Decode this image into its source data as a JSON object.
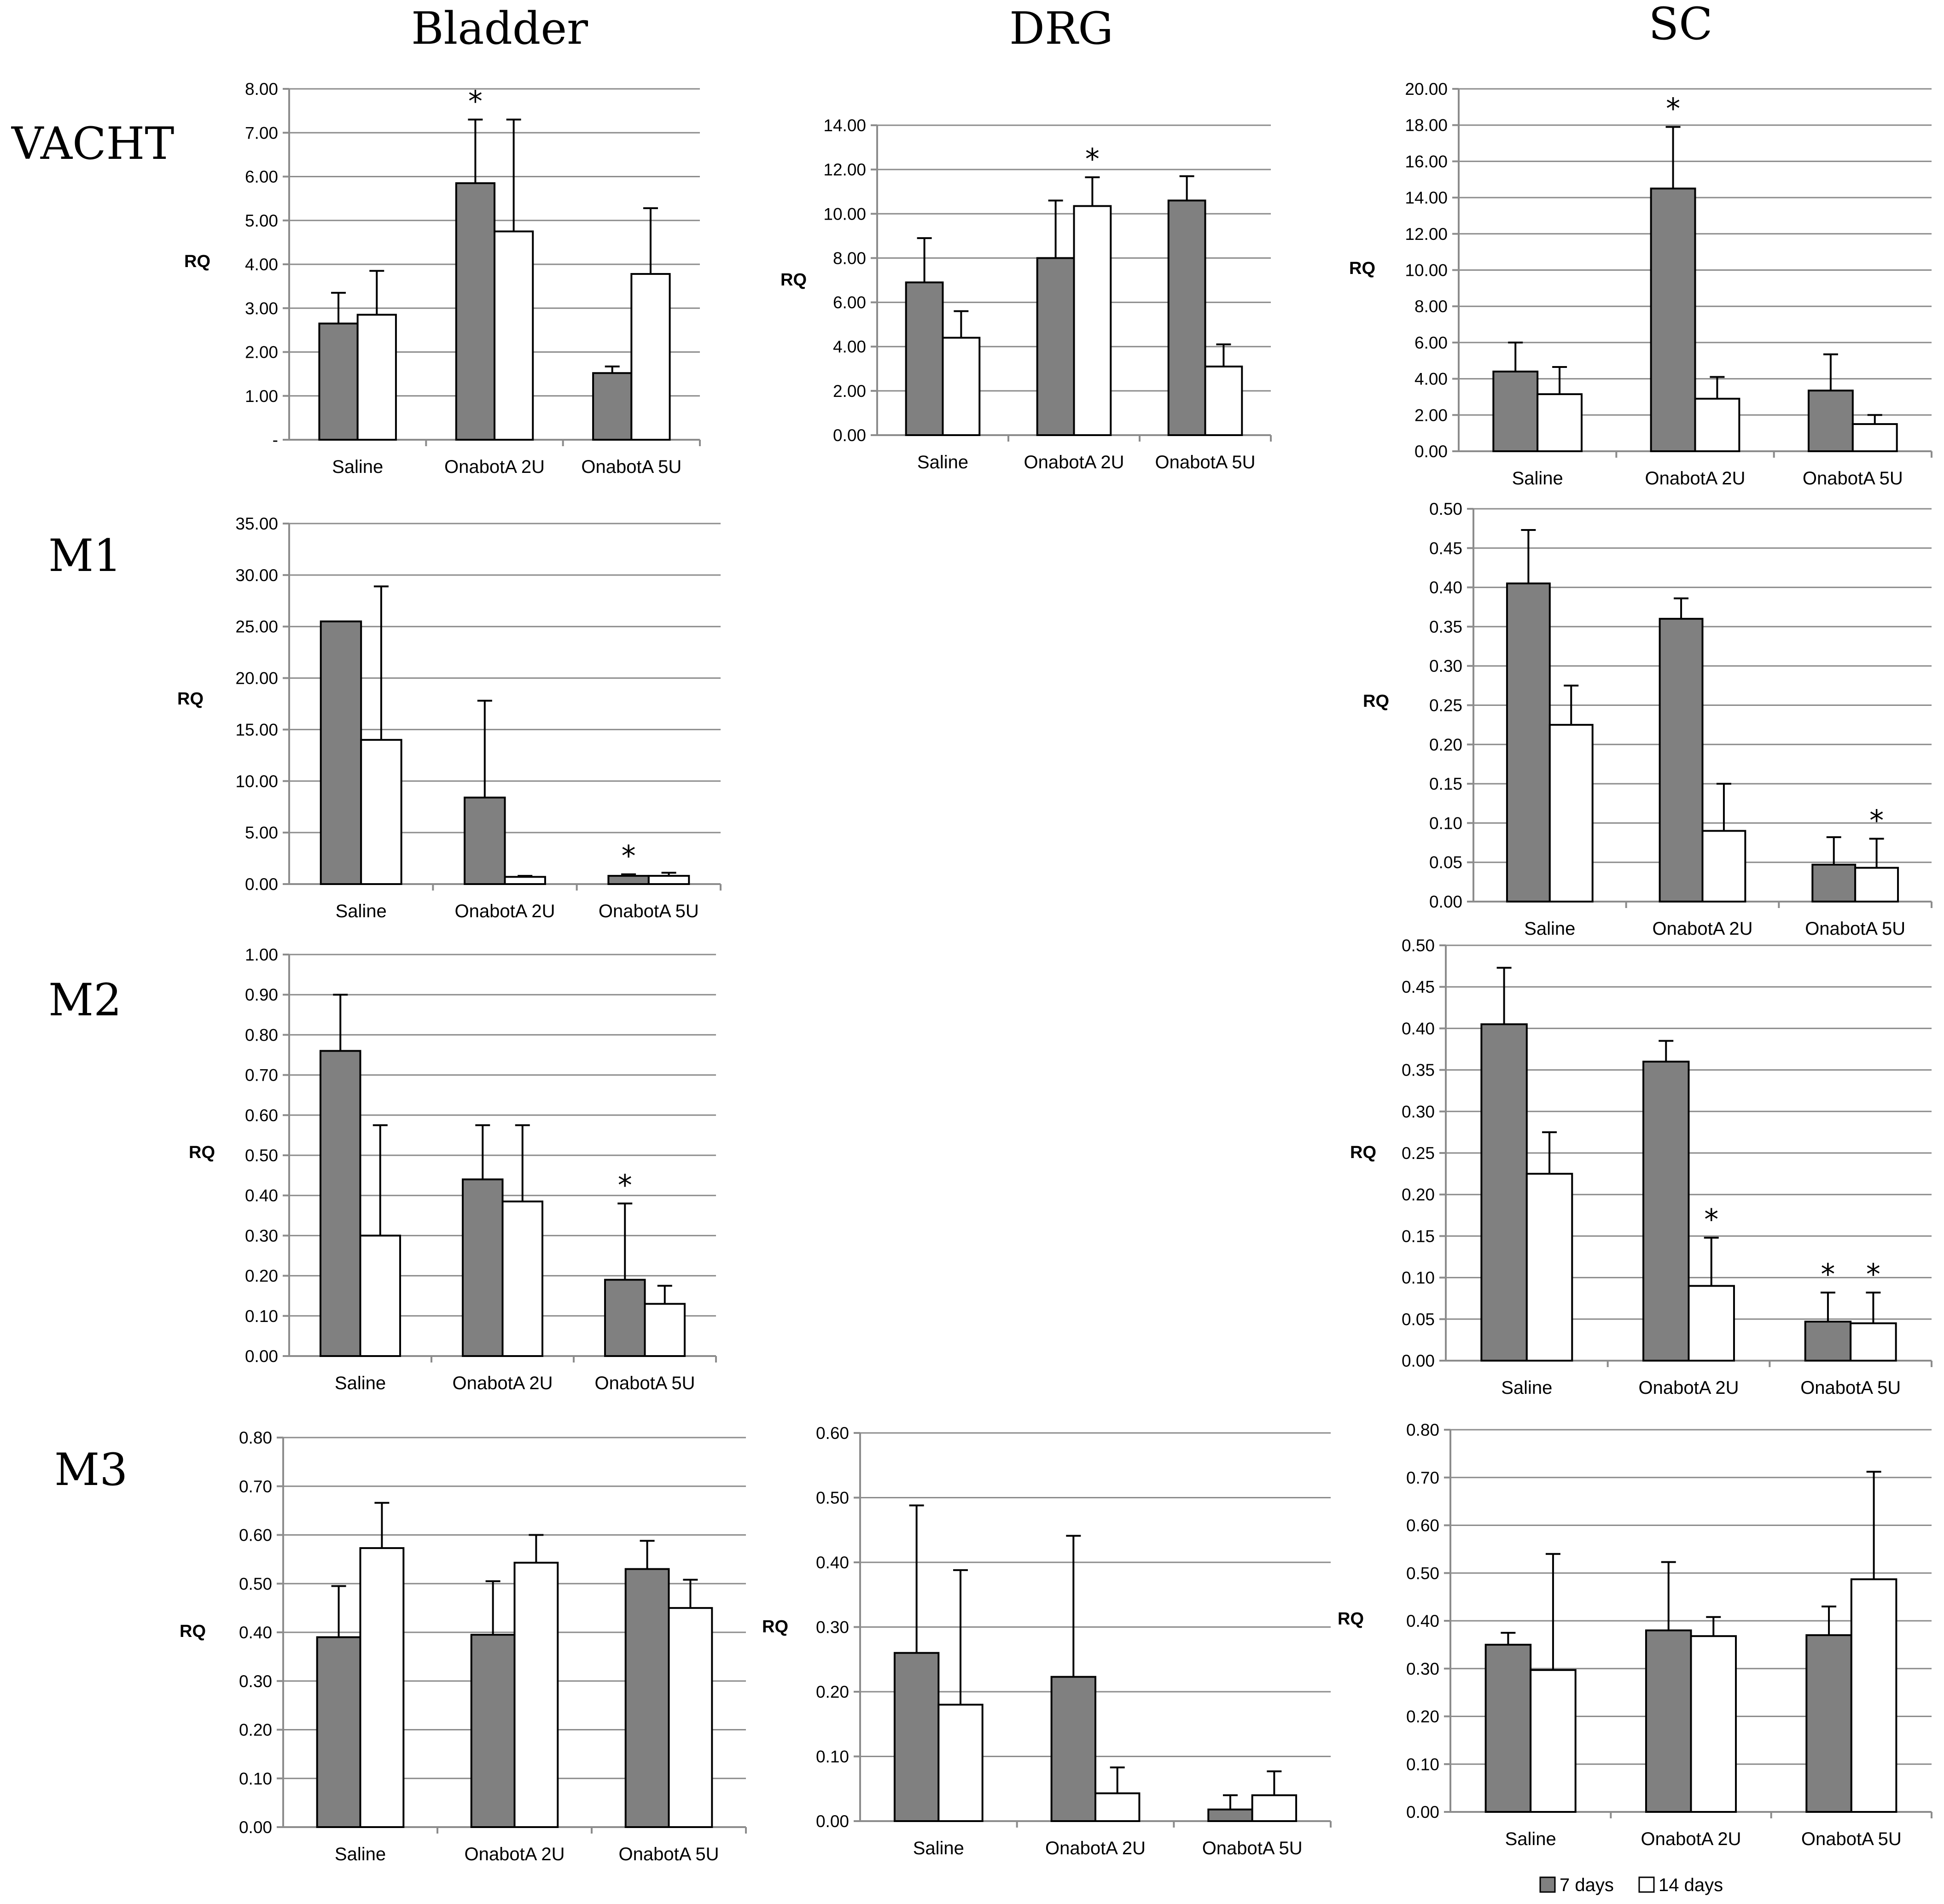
{
  "columns": [
    "Bladder",
    "DRG",
    "SC"
  ],
  "rows": [
    "VACHT",
    "M1",
    "M2",
    "M3"
  ],
  "legend": {
    "items": [
      {
        "label": "7 days",
        "color": "#808080"
      },
      {
        "label": "14 days",
        "color": "#ffffff"
      }
    ]
  },
  "colors": {
    "series_7": "#808080",
    "series_14": "#ffffff",
    "grid": "#8c8c8c"
  },
  "chart_data": [
    {
      "id": "vacht-bladder",
      "type": "bar",
      "categories": [
        "Saline",
        "OnabotA 2U",
        "OnabotA 5U"
      ],
      "ylabel": "RQ",
      "ylim": [
        0,
        8
      ],
      "ticks": [
        "-",
        "1.00",
        "2.00",
        "3.00",
        "4.00",
        "5.00",
        "6.00",
        "7.00",
        "8.00"
      ],
      "series": [
        {
          "name": "7 days",
          "values": [
            2.65,
            5.85,
            1.52
          ],
          "err": [
            0.7,
            1.45,
            0.15
          ]
        },
        {
          "name": "14 days",
          "values": [
            2.85,
            4.75,
            3.78
          ],
          "err": [
            1.0,
            2.55,
            1.5
          ]
        }
      ],
      "stars": [
        [],
        [
          "*"
        ],
        []
      ]
    },
    {
      "id": "vacht-drg",
      "type": "bar",
      "categories": [
        "Saline",
        "OnabotA 2U",
        "OnabotA 5U"
      ],
      "ylabel": "RQ",
      "ylim": [
        0,
        14
      ],
      "ticks": [
        "0.00",
        "2.00",
        "4.00",
        "6.00",
        "8.00",
        "10.00",
        "12.00",
        "14.00"
      ],
      "series": [
        {
          "name": "7 days",
          "values": [
            6.9,
            8.0,
            10.6
          ],
          "err": [
            2.0,
            2.6,
            1.1
          ]
        },
        {
          "name": "14 days",
          "values": [
            4.4,
            10.35,
            3.1
          ],
          "err": [
            1.2,
            1.3,
            1.0
          ]
        }
      ],
      "stars": [
        [],
        [
          "",
          "*"
        ],
        []
      ]
    },
    {
      "id": "vacht-sc",
      "type": "bar",
      "categories": [
        "Saline",
        "OnabotA 2U",
        "OnabotA 5U"
      ],
      "ylabel": "RQ",
      "ylim": [
        0,
        20
      ],
      "ticks": [
        "0.00",
        "2.00",
        "4.00",
        "6.00",
        "8.00",
        "10.00",
        "12.00",
        "14.00",
        "16.00",
        "18.00",
        "20.00"
      ],
      "series": [
        {
          "name": "7 days",
          "values": [
            4.4,
            14.5,
            3.35
          ],
          "err": [
            1.6,
            3.4,
            2.0
          ]
        },
        {
          "name": "14 days",
          "values": [
            3.15,
            2.9,
            1.5
          ],
          "err": [
            1.5,
            1.2,
            0.5
          ]
        }
      ],
      "stars": [
        [],
        [
          "*"
        ],
        []
      ]
    },
    {
      "id": "m1-bladder",
      "type": "bar",
      "categories": [
        "Saline",
        "OnabotA 2U",
        "OnabotA 5U"
      ],
      "ylabel": "RQ",
      "ylim": [
        0,
        35
      ],
      "ticks": [
        "0.00",
        "5.00",
        "10.00",
        "15.00",
        "20.00",
        "25.00",
        "30.00",
        "35.00"
      ],
      "series": [
        {
          "name": "7 days",
          "values": [
            25.5,
            8.4,
            0.8
          ],
          "err": [
            0,
            9.4,
            0.15
          ]
        },
        {
          "name": "14 days",
          "values": [
            14.0,
            0.7,
            0.8
          ],
          "err": [
            14.9,
            0.1,
            0.3
          ]
        }
      ],
      "stars": [
        [],
        [],
        [
          "*"
        ]
      ]
    },
    {
      "id": "m1-sc",
      "type": "bar",
      "categories": [
        "Saline",
        "OnabotA 2U",
        "OnabotA 5U"
      ],
      "ylabel": "RQ",
      "ylim": [
        0,
        0.5
      ],
      "ticks": [
        "0.00",
        "0.05",
        "0.10",
        "0.15",
        "0.20",
        "0.25",
        "0.30",
        "0.35",
        "0.40",
        "0.45",
        "0.50"
      ],
      "series": [
        {
          "name": "7 days",
          "values": [
            0.405,
            0.36,
            0.047
          ],
          "err": [
            0.068,
            0.026,
            0.035
          ]
        },
        {
          "name": "14 days",
          "values": [
            0.225,
            0.09,
            0.043
          ],
          "err": [
            0.05,
            0.06,
            0.037
          ]
        }
      ],
      "stars": [
        [],
        [],
        [
          "",
          "*"
        ]
      ]
    },
    {
      "id": "m2-bladder",
      "type": "bar",
      "categories": [
        "Saline",
        "OnabotA 2U",
        "OnabotA 5U"
      ],
      "ylabel": "RQ",
      "ylim": [
        0,
        1
      ],
      "ticks": [
        "0.00",
        "0.10",
        "0.20",
        "0.30",
        "0.40",
        "0.50",
        "0.60",
        "0.70",
        "0.80",
        "0.90",
        "1.00"
      ],
      "series": [
        {
          "name": "7 days",
          "values": [
            0.76,
            0.44,
            0.19
          ],
          "err": [
            0.14,
            0.135,
            0.19
          ]
        },
        {
          "name": "14 days",
          "values": [
            0.3,
            0.385,
            0.13
          ],
          "err": [
            0.275,
            0.19,
            0.045
          ]
        }
      ],
      "stars": [
        [],
        [],
        [
          "*"
        ]
      ]
    },
    {
      "id": "m2-sc",
      "type": "bar",
      "categories": [
        "Saline",
        "OnabotA 2U",
        "OnabotA 5U"
      ],
      "ylabel": "RQ",
      "ylim": [
        0,
        0.5
      ],
      "ticks": [
        "0.00",
        "0.05",
        "0.10",
        "0.15",
        "0.20",
        "0.25",
        "0.30",
        "0.35",
        "0.40",
        "0.45",
        "0.50"
      ],
      "series": [
        {
          "name": "7 days",
          "values": [
            0.405,
            0.36,
            0.047
          ],
          "err": [
            0.068,
            0.025,
            0.035
          ]
        },
        {
          "name": "14 days",
          "values": [
            0.225,
            0.09,
            0.045
          ],
          "err": [
            0.05,
            0.058,
            0.037
          ]
        }
      ],
      "stars": [
        [],
        [
          "",
          "*"
        ],
        [
          "*",
          "*"
        ]
      ]
    },
    {
      "id": "m3-bladder",
      "type": "bar",
      "categories": [
        "Saline",
        "OnabotA 2U",
        "OnabotA 5U"
      ],
      "ylabel": "RQ",
      "ylim": [
        0,
        0.8
      ],
      "ticks": [
        "0.00",
        "0.10",
        "0.20",
        "0.30",
        "0.40",
        "0.50",
        "0.60",
        "0.70",
        "0.80"
      ],
      "series": [
        {
          "name": "7 days",
          "values": [
            0.39,
            0.395,
            0.53
          ],
          "err": [
            0.105,
            0.11,
            0.058
          ]
        },
        {
          "name": "14 days",
          "values": [
            0.573,
            0.543,
            0.45
          ],
          "err": [
            0.093,
            0.057,
            0.058
          ]
        }
      ],
      "stars": [
        [],
        [],
        []
      ]
    },
    {
      "id": "m3-drg",
      "type": "bar",
      "categories": [
        "Saline",
        "OnabotA 2U",
        "OnabotA 5U"
      ],
      "ylabel": "RQ",
      "ylim": [
        0,
        0.6
      ],
      "ticks": [
        "0.00",
        "0.10",
        "0.20",
        "0.30",
        "0.40",
        "0.50",
        "0.60"
      ],
      "series": [
        {
          "name": "7 days",
          "values": [
            0.26,
            0.223,
            0.018
          ],
          "err": [
            0.228,
            0.218,
            0.022
          ]
        },
        {
          "name": "14 days",
          "values": [
            0.18,
            0.043,
            0.04
          ],
          "err": [
            0.208,
            0.04,
            0.037
          ]
        }
      ],
      "stars": [
        [],
        [],
        []
      ]
    },
    {
      "id": "m3-sc",
      "type": "bar",
      "categories": [
        "Saline",
        "OnabotA 2U",
        "OnabotA 5U"
      ],
      "ylabel": "RQ",
      "ylim": [
        0,
        0.8
      ],
      "ticks": [
        "0.00",
        "0.10",
        "0.20",
        "0.30",
        "0.40",
        "0.50",
        "0.60",
        "0.70",
        "0.80"
      ],
      "series": [
        {
          "name": "7 days",
          "values": [
            0.35,
            0.38,
            0.37
          ],
          "err": [
            0.025,
            0.143,
            0.06
          ]
        },
        {
          "name": "14 days",
          "values": [
            0.297,
            0.368,
            0.487
          ],
          "err": [
            0.243,
            0.04,
            0.225
          ]
        }
      ],
      "stars": [
        [],
        [],
        []
      ]
    }
  ]
}
